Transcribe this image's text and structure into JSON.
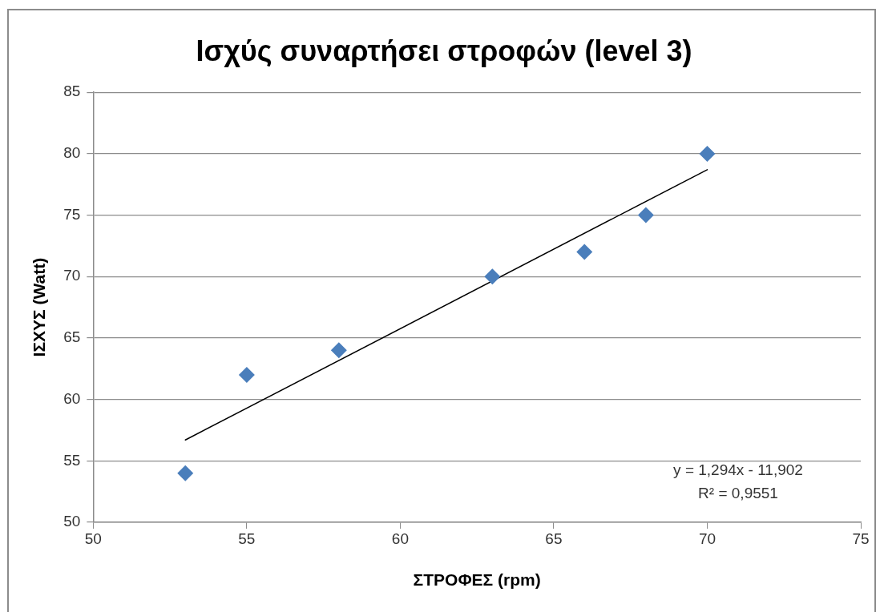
{
  "chart_data": {
    "type": "scatter",
    "title": "Ισχύς συναρτήσει στροφών (level 3)",
    "xlabel": "ΣΤΡΟΦΕΣ (rpm)",
    "ylabel": "ΙΣΧΥΣ (Watt)",
    "annotations": [
      "y = 1,294x - 11,902",
      "R² = 0,9551"
    ],
    "xlim": [
      50,
      75
    ],
    "xticks": [
      50,
      55,
      60,
      65,
      70,
      75
    ],
    "ylim": [
      50,
      85
    ],
    "yticks": [
      50,
      55,
      60,
      65,
      70,
      75,
      80,
      85
    ],
    "grid": "y",
    "legend": false,
    "series": [
      {
        "x": [
          53,
          55,
          58,
          63,
          66,
          68,
          70
        ],
        "values": [
          54,
          62,
          64,
          70,
          72,
          75,
          80
        ],
        "color": "#4a7ebb",
        "marker": "diamond"
      },
      {
        "type": "line",
        "x": [
          53,
          70
        ],
        "values": [
          56.7,
          78.7
        ],
        "color": "#000000",
        "marker": "none",
        "line_style": "solid"
      }
    ]
  }
}
